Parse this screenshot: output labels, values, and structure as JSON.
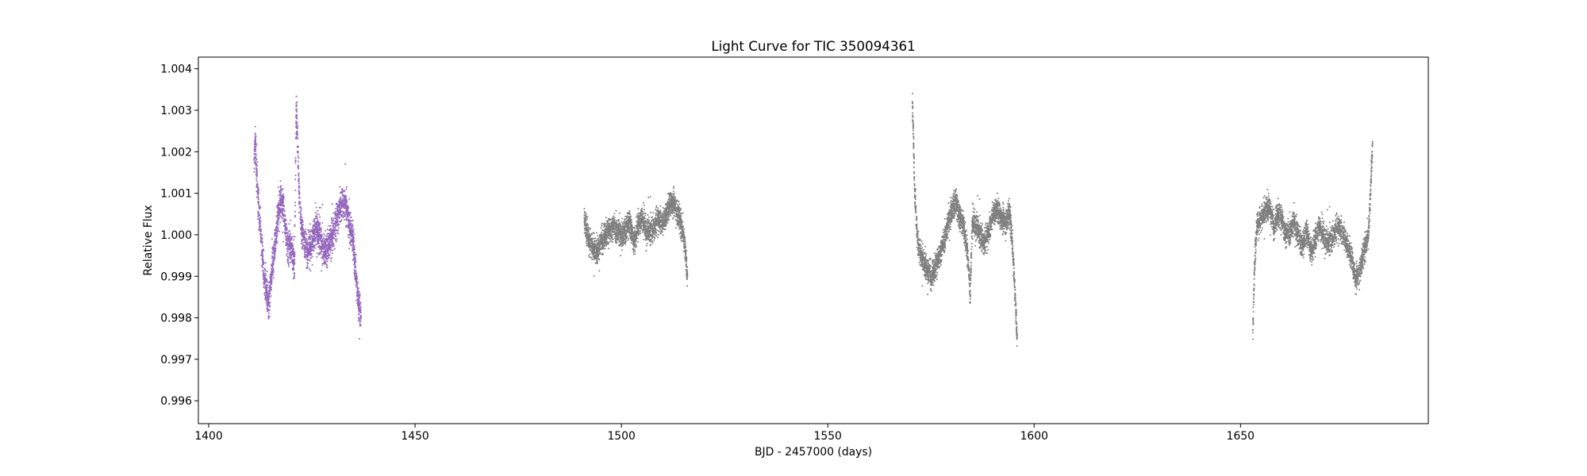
{
  "chart_data": {
    "type": "scatter",
    "title": "Light Curve for TIC 350094361",
    "xlabel": "BJD - 2457000 (days)",
    "ylabel": "Relative Flux",
    "xlim": [
      1397.5,
      1695.5
    ],
    "ylim": [
      0.99545,
      1.00428
    ],
    "x_ticks": [
      1400,
      1450,
      1500,
      1550,
      1600,
      1650
    ],
    "x_tick_labels": [
      "1400",
      "1450",
      "1500",
      "1550",
      "1600",
      "1650"
    ],
    "y_ticks": [
      0.996,
      0.997,
      0.998,
      0.999,
      1.0,
      1.001,
      1.002,
      1.003,
      1.004
    ],
    "y_tick_labels": [
      "0.996",
      "0.997",
      "0.998",
      "0.999",
      "1.000",
      "1.001",
      "1.002",
      "1.003",
      "1.004"
    ],
    "grid": false,
    "legend": "none",
    "colors": {
      "highlight": "#9467bd",
      "other": "#7f7f7f"
    },
    "series": [
      {
        "color": "#9467bd",
        "x_range": [
          1411.0,
          1436.9
        ],
        "points": [
          [
            1411.0,
            1.0018
          ],
          [
            1411.3,
            1.0023
          ],
          [
            1411.6,
            1.0015
          ],
          [
            1412.0,
            1.0008
          ],
          [
            1412.5,
            1.0002
          ],
          [
            1413.0,
            0.9995
          ],
          [
            1413.5,
            0.9989
          ],
          [
            1414.0,
            0.9986
          ],
          [
            1414.5,
            0.9984
          ],
          [
            1415.0,
            0.9988
          ],
          [
            1415.5,
            0.9993
          ],
          [
            1416.0,
            0.9997
          ],
          [
            1416.5,
            1.0002
          ],
          [
            1417.0,
            1.0006
          ],
          [
            1417.5,
            1.0008
          ],
          [
            1418.0,
            1.0007
          ],
          [
            1418.5,
            1.0002
          ],
          [
            1419.0,
            0.9998
          ],
          [
            1420.0,
            0.9997
          ],
          [
            1420.8,
            0.9993
          ],
          [
            1421.2,
            1.003
          ],
          [
            1421.5,
            1.0024
          ],
          [
            1422.0,
            1.0008
          ],
          [
            1422.5,
            1.0001
          ],
          [
            1423.0,
            0.9999
          ],
          [
            1423.5,
            0.9998
          ],
          [
            1424.0,
            0.9996
          ],
          [
            1425.0,
            0.9998
          ],
          [
            1426.0,
            1.0002
          ],
          [
            1427.0,
            0.9999
          ],
          [
            1428.0,
            0.9996
          ],
          [
            1429.0,
            0.9997
          ],
          [
            1430.0,
            1.0
          ],
          [
            1431.0,
            1.0004
          ],
          [
            1432.0,
            1.0007
          ],
          [
            1433.0,
            1.0008
          ],
          [
            1434.0,
            1.0003
          ],
          [
            1434.5,
            1.0001
          ],
          [
            1435.0,
            0.9998
          ],
          [
            1435.5,
            0.9992
          ],
          [
            1436.0,
            0.9986
          ],
          [
            1436.5,
            0.9982
          ],
          [
            1436.9,
            0.998
          ]
        ]
      },
      {
        "color": "#7f7f7f",
        "x_range": [
          1491.0,
          1516.0
        ],
        "points": [
          [
            1491.0,
            1.0004
          ],
          [
            1491.5,
            1.0001
          ],
          [
            1492.0,
            0.9999
          ],
          [
            1493.0,
            0.9997
          ],
          [
            1494.0,
            0.9996
          ],
          [
            1495.0,
            0.9998
          ],
          [
            1496.0,
            1.0
          ],
          [
            1497.0,
            1.0001
          ],
          [
            1498.0,
            1.0002
          ],
          [
            1499.0,
            1.0001
          ],
          [
            1500.0,
            1.0
          ],
          [
            1501.0,
            1.0001
          ],
          [
            1502.0,
            1.0003
          ],
          [
            1503.0,
            0.9998
          ],
          [
            1504.0,
            1.0002
          ],
          [
            1505.0,
            1.0004
          ],
          [
            1506.0,
            1.0001
          ],
          [
            1507.0,
            1.0001
          ],
          [
            1508.0,
            1.0002
          ],
          [
            1509.0,
            1.0004
          ],
          [
            1510.0,
            1.0003
          ],
          [
            1511.0,
            1.0005
          ],
          [
            1512.0,
            1.0008
          ],
          [
            1513.0,
            1.0007
          ],
          [
            1514.0,
            1.0004
          ],
          [
            1515.0,
            1.0
          ],
          [
            1515.5,
            0.9996
          ],
          [
            1516.0,
            0.999
          ]
        ]
      },
      {
        "color": "#7f7f7f",
        "x_range": [
          1570.5,
          1595.9
        ],
        "points": [
          [
            1570.5,
            1.0032
          ],
          [
            1570.8,
            1.0022
          ],
          [
            1571.0,
            1.0012
          ],
          [
            1571.5,
            1.0002
          ],
          [
            1572.0,
            0.9997
          ],
          [
            1573.0,
            0.9994
          ],
          [
            1574.0,
            0.9992
          ],
          [
            1575.0,
            0.999
          ],
          [
            1576.0,
            0.9992
          ],
          [
            1577.0,
            0.9995
          ],
          [
            1578.0,
            0.9998
          ],
          [
            1579.0,
            1.0002
          ],
          [
            1580.0,
            1.0006
          ],
          [
            1581.0,
            1.0008
          ],
          [
            1582.0,
            1.0004
          ],
          [
            1583.0,
            1.0002
          ],
          [
            1584.0,
            0.9994
          ],
          [
            1584.5,
            0.9985
          ],
          [
            1585.0,
            1.0003
          ],
          [
            1586.0,
            1.0002
          ],
          [
            1587.0,
            1.0
          ],
          [
            1588.0,
            0.9998
          ],
          [
            1589.0,
            1.0001
          ],
          [
            1590.0,
            1.0005
          ],
          [
            1591.0,
            1.0006
          ],
          [
            1592.0,
            1.0004
          ],
          [
            1593.0,
            1.0003
          ],
          [
            1594.0,
            1.0005
          ],
          [
            1594.5,
            1.0001
          ],
          [
            1595.0,
            0.9993
          ],
          [
            1595.5,
            0.9983
          ],
          [
            1595.9,
            0.9975
          ]
        ]
      },
      {
        "color": "#7f7f7f",
        "x_range": [
          1653.0,
          1682.0
        ],
        "points": [
          [
            1653.0,
            0.9977
          ],
          [
            1653.2,
            0.9985
          ],
          [
            1653.5,
            0.9995
          ],
          [
            1654.0,
            1.0002
          ],
          [
            1655.0,
            1.0004
          ],
          [
            1656.0,
            1.0006
          ],
          [
            1657.0,
            1.0007
          ],
          [
            1658.0,
            1.0002
          ],
          [
            1659.0,
            1.0005
          ],
          [
            1660.0,
            1.0004
          ],
          [
            1661.0,
            1.0
          ],
          [
            1662.0,
            1.0001
          ],
          [
            1663.0,
            1.0003
          ],
          [
            1664.0,
            1.0
          ],
          [
            1665.0,
            0.9997
          ],
          [
            1666.0,
            1.0001
          ],
          [
            1667.0,
            0.9996
          ],
          [
            1668.0,
            0.9998
          ],
          [
            1669.0,
            1.0002
          ],
          [
            1670.0,
            1.0
          ],
          [
            1671.0,
            0.9998
          ],
          [
            1672.0,
            0.9999
          ],
          [
            1673.0,
            1.0001
          ],
          [
            1674.0,
            1.0002
          ],
          [
            1675.0,
            1.0
          ],
          [
            1676.0,
            0.9997
          ],
          [
            1677.0,
            0.9994
          ],
          [
            1678.0,
            0.9989
          ],
          [
            1679.0,
            0.9992
          ],
          [
            1680.0,
            0.9996
          ],
          [
            1681.0,
            1.0
          ],
          [
            1681.5,
            1.001
          ],
          [
            1681.8,
            1.0018
          ],
          [
            1682.0,
            1.0022
          ]
        ]
      }
    ]
  }
}
